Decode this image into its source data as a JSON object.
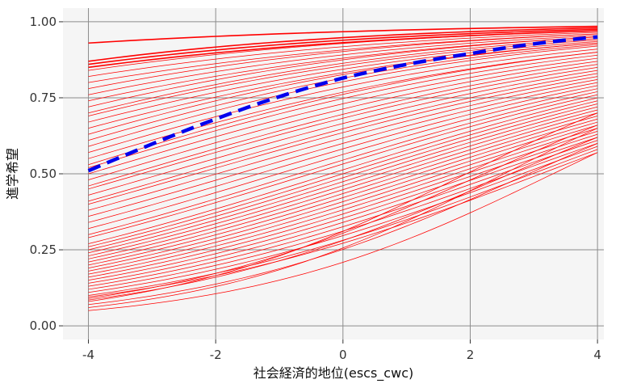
{
  "chart_data": {
    "type": "line",
    "title": "",
    "xlabel": "社会経済的地位(escs_cwc)",
    "ylabel": "進学希望",
    "xlim": [
      -4.4,
      4.1
    ],
    "ylim": [
      -0.045,
      1.045
    ],
    "x_ticks": [
      -4,
      -2,
      0,
      2,
      4
    ],
    "x_tick_labels": [
      "-4",
      "-2",
      "0",
      "2",
      "4"
    ],
    "y_ticks": [
      0.0,
      0.25,
      0.5,
      0.75,
      1.0
    ],
    "y_tick_labels": [
      "0.00",
      "0.25",
      "0.50",
      "0.75",
      "1.00"
    ],
    "grid": true,
    "background": "#f5f5f5",
    "grid_color": "#8c8c8c",
    "group_curve_color": "#ff0000",
    "average_curve_color": "#0000ee",
    "group_curves_x_range": [
      -4,
      4
    ],
    "group_curves_y_at_x_minus4": [
      0.93,
      0.87,
      0.86,
      0.85,
      0.84,
      0.82,
      0.8,
      0.78,
      0.76,
      0.74,
      0.72,
      0.7,
      0.69,
      0.67,
      0.65,
      0.63,
      0.61,
      0.59,
      0.57,
      0.55,
      0.53,
      0.52,
      0.5,
      0.48,
      0.46,
      0.45,
      0.43,
      0.41,
      0.4,
      0.38,
      0.36,
      0.34,
      0.32,
      0.3,
      0.29,
      0.27,
      0.26,
      0.25,
      0.24,
      0.23,
      0.22,
      0.21,
      0.2,
      0.19,
      0.18,
      0.17,
      0.16,
      0.15,
      0.14,
      0.13,
      0.12,
      0.11,
      0.1,
      0.095,
      0.09,
      0.085,
      0.08,
      0.07,
      0.06,
      0.05
    ],
    "group_curves_y_at_x_4": [
      0.985,
      0.98,
      0.975,
      0.97,
      0.97,
      0.965,
      0.96,
      0.96,
      0.955,
      0.95,
      0.95,
      0.945,
      0.94,
      0.935,
      0.93,
      0.93,
      0.925,
      0.92,
      0.91,
      0.9,
      0.9,
      0.89,
      0.88,
      0.87,
      0.86,
      0.85,
      0.84,
      0.83,
      0.82,
      0.81,
      0.8,
      0.79,
      0.78,
      0.77,
      0.76,
      0.75,
      0.74,
      0.73,
      0.72,
      0.71,
      0.7,
      0.69,
      0.68,
      0.67,
      0.66,
      0.65,
      0.64,
      0.63,
      0.62,
      0.61,
      0.6,
      0.59,
      0.58,
      0.57,
      0.66,
      0.62,
      0.7,
      0.6,
      0.65,
      0.57
    ],
    "average_curve": {
      "style": "dashed",
      "x": [
        -4,
        -2,
        0,
        2,
        4
      ],
      "y": [
        0.51,
        0.68,
        0.815,
        0.895,
        0.95
      ]
    }
  }
}
